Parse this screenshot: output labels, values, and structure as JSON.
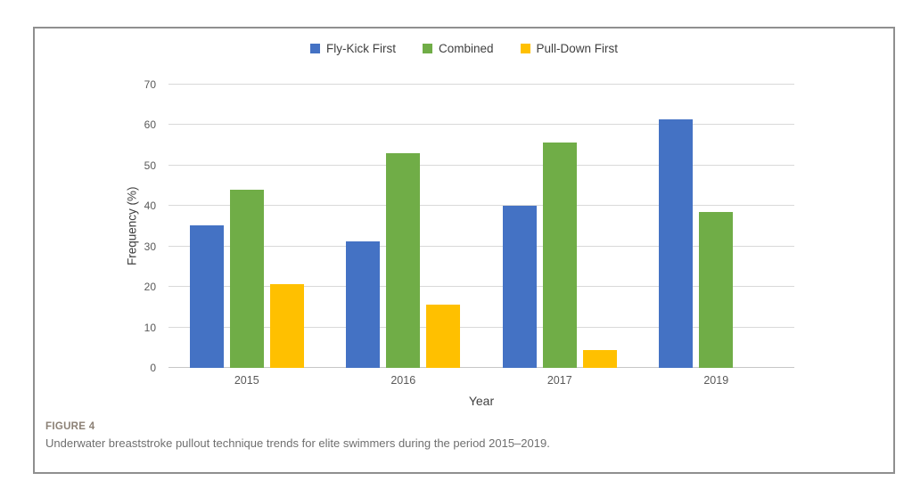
{
  "figure": {
    "label": "FIGURE 4",
    "caption": "Underwater breaststroke pullout technique trends for elite swimmers during the period 2015–2019."
  },
  "chart_data": {
    "type": "bar",
    "title": "",
    "categories": [
      "2015",
      "2016",
      "2017",
      "2019"
    ],
    "series": [
      {
        "name": "Fly-Kick First",
        "color": "#4472C4",
        "values": [
          35.3,
          31.3,
          40.0,
          61.5
        ]
      },
      {
        "name": "Combined",
        "color": "#70AD47",
        "values": [
          44.1,
          53.1,
          55.6,
          38.5
        ]
      },
      {
        "name": "Pull-Down First",
        "color": "#FFC000",
        "values": [
          20.6,
          15.6,
          4.4,
          null
        ]
      }
    ],
    "xlabel": "Year",
    "ylabel": "Frequency (%)",
    "ylim": [
      0,
      70
    ],
    "ytick_step": 10,
    "grid": "horizontal",
    "legend_position": "top-center"
  }
}
